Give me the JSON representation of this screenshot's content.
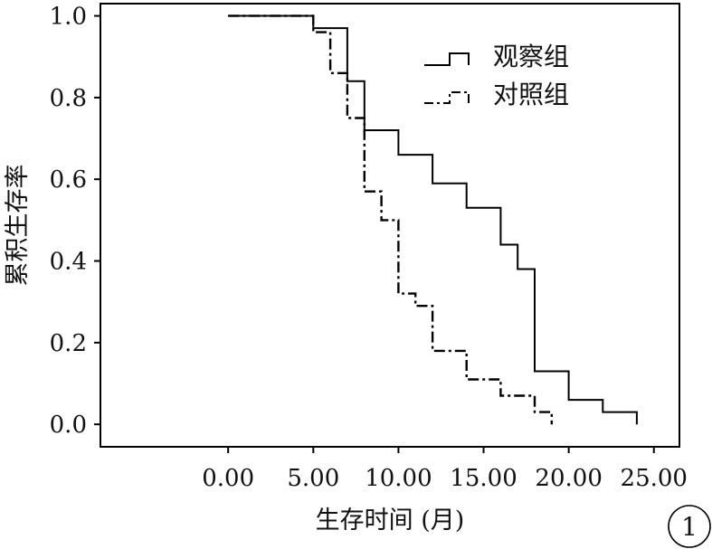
{
  "chart_data": {
    "type": "line",
    "step": true,
    "title": "",
    "xlabel": "生存时间 (月)",
    "ylabel": "累积生存率",
    "xlim": [
      -7.5,
      26.5
    ],
    "ylim": [
      -0.055,
      1.03
    ],
    "x_ticks": [
      0,
      5,
      10,
      15,
      20,
      25
    ],
    "x_tick_labels": [
      "0.00",
      "5.00",
      "10.00",
      "15.00",
      "20.00",
      "25.00"
    ],
    "y_ticks": [
      0.0,
      0.2,
      0.4,
      0.6,
      0.8,
      1.0
    ],
    "y_tick_labels": [
      "0.0",
      "0.2",
      "0.4",
      "0.6",
      "0.8",
      "1.0"
    ],
    "grid": false,
    "legend_position": "top-right",
    "series": [
      {
        "name": "观察组",
        "style": "solid",
        "x": [
          0,
          5,
          5,
          7,
          7,
          8,
          8,
          10,
          10,
          12,
          12,
          14,
          14,
          16,
          16,
          17,
          17,
          18,
          18,
          20,
          20,
          22,
          22,
          24,
          24
        ],
        "y": [
          1.0,
          1.0,
          0.97,
          0.97,
          0.84,
          0.84,
          0.72,
          0.72,
          0.66,
          0.66,
          0.59,
          0.59,
          0.53,
          0.53,
          0.44,
          0.44,
          0.38,
          0.38,
          0.13,
          0.13,
          0.06,
          0.06,
          0.03,
          0.03,
          0.0
        ]
      },
      {
        "name": "对照组",
        "style": "dashdot",
        "x": [
          0,
          5,
          5,
          6,
          6,
          7,
          7,
          8,
          8,
          9,
          9,
          10,
          10,
          11,
          11,
          12,
          12,
          14,
          14,
          16,
          16,
          18,
          18,
          19,
          19
        ],
        "y": [
          1.0,
          1.0,
          0.96,
          0.96,
          0.86,
          0.86,
          0.75,
          0.75,
          0.57,
          0.57,
          0.5,
          0.5,
          0.32,
          0.32,
          0.29,
          0.29,
          0.18,
          0.18,
          0.11,
          0.11,
          0.07,
          0.07,
          0.03,
          0.03,
          0.0
        ]
      }
    ],
    "panel_label": "1"
  }
}
